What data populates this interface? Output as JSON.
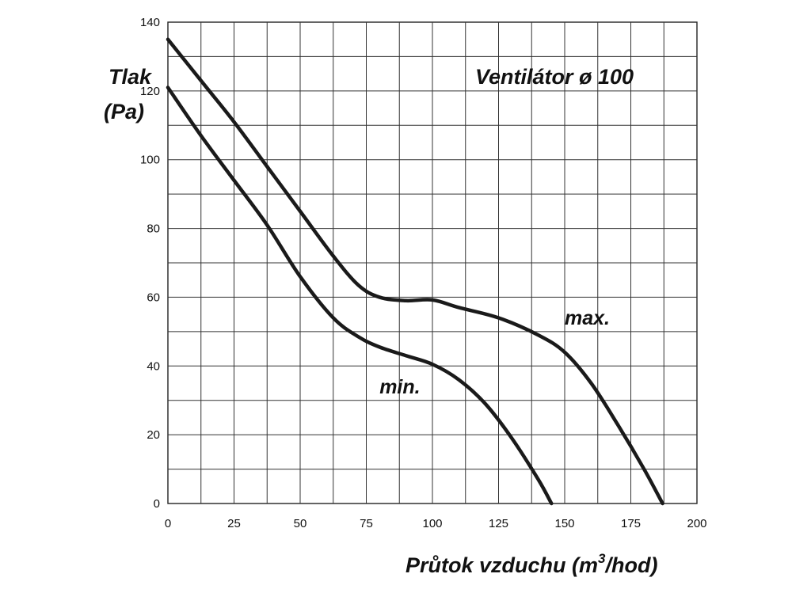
{
  "chart_data": {
    "type": "line",
    "title": "Ventilátor ø 100",
    "xlabel": "Průtok vzduchu (m³/hod)",
    "xlabel_main": "Průtok vzduchu (m",
    "xlabel_sup": "3",
    "xlabel_tail": "/hod)",
    "ylabel_line1": "Tlak",
    "ylabel_line2": "(Pa)",
    "xlim": [
      0,
      200
    ],
    "ylim": [
      0,
      140
    ],
    "xticks": [
      0,
      25,
      50,
      75,
      100,
      125,
      150,
      175,
      200
    ],
    "yticks": [
      0,
      20,
      40,
      60,
      80,
      100,
      120,
      140
    ],
    "x_minor_step": 12.5,
    "y_minor_step": 10,
    "grid": true,
    "series": [
      {
        "name": "max.",
        "points": [
          [
            0,
            135
          ],
          [
            12.5,
            123
          ],
          [
            25,
            111
          ],
          [
            37.5,
            98
          ],
          [
            50,
            85
          ],
          [
            62.5,
            72
          ],
          [
            72,
            63.5
          ],
          [
            80,
            60
          ],
          [
            90,
            59
          ],
          [
            100,
            59.2
          ],
          [
            110,
            57
          ],
          [
            125,
            54
          ],
          [
            140,
            49
          ],
          [
            150,
            44
          ],
          [
            160,
            35
          ],
          [
            170,
            23
          ],
          [
            180,
            10
          ],
          [
            187,
            0
          ]
        ]
      },
      {
        "name": "min.",
        "points": [
          [
            0,
            121
          ],
          [
            12.5,
            107
          ],
          [
            25,
            94
          ],
          [
            37.5,
            81
          ],
          [
            50,
            66
          ],
          [
            62.5,
            54
          ],
          [
            72,
            48.5
          ],
          [
            80,
            45.5
          ],
          [
            90,
            43
          ],
          [
            100,
            40.5
          ],
          [
            110,
            36
          ],
          [
            120,
            29
          ],
          [
            130,
            19
          ],
          [
            140,
            7
          ],
          [
            145,
            0
          ]
        ]
      }
    ],
    "series_label_positions": {
      "max.": [
        150,
        52
      ],
      "min.": [
        80,
        32
      ]
    }
  }
}
